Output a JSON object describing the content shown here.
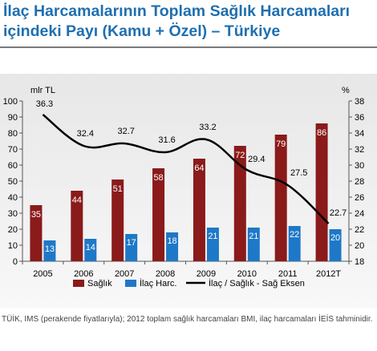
{
  "title": {
    "line1": "İlaç Harcamalarının Toplam Sağlık Harcamaları",
    "line2": "içindeki Payı (Kamu + Özel) – Türkiye"
  },
  "source": "TÜİK, IMS (perakende fiyatlarıyla); 2012 toplam sağlık harcamaları BMI, ilaç harcamaları İEİS tahminidir.",
  "colors": {
    "title": "#1f6fb0",
    "saglik": "#8b1a1a",
    "ilac": "#1e78c8",
    "line": "#000000"
  },
  "chart_data": {
    "type": "bar",
    "categories": [
      "2005",
      "2006",
      "2007",
      "2008",
      "2009",
      "2010",
      "2011",
      "2012T"
    ],
    "series": [
      {
        "name": "Sağlık",
        "type": "bar",
        "axis": "left",
        "values": [
          35,
          44,
          51,
          58,
          64,
          72,
          79,
          86
        ]
      },
      {
        "name": "İlaç Harc.",
        "type": "bar",
        "axis": "left",
        "values": [
          13,
          14,
          17,
          18,
          21,
          21,
          22,
          20
        ]
      },
      {
        "name": "İlaç / Sağlık - Sağ Eksen",
        "type": "line",
        "axis": "right",
        "values": [
          36.3,
          32.4,
          32.7,
          31.6,
          33.2,
          29.4,
          27.5,
          22.7
        ]
      }
    ],
    "left_axis": {
      "label": "mlr TL",
      "min": 0,
      "max": 100,
      "step": 10
    },
    "right_axis": {
      "label": "%",
      "min": 18,
      "max": 38,
      "step": 2
    },
    "legend_position": "bottom",
    "grid": false
  }
}
